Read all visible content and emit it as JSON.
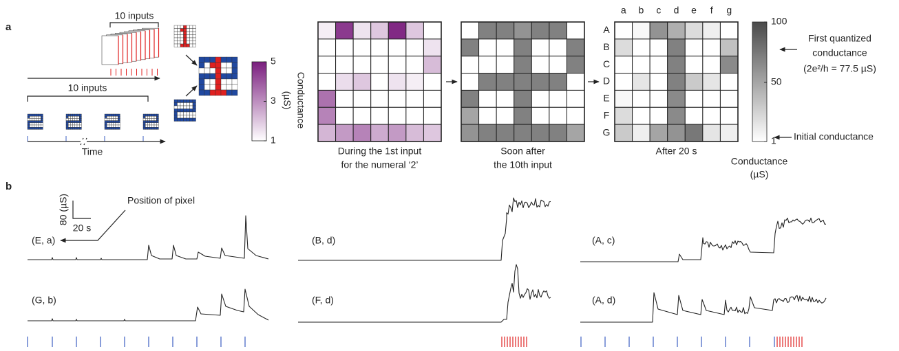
{
  "panel_a": {
    "label": "a",
    "inputs_label_top": "10 inputs",
    "inputs_label_bottom": "10 inputs",
    "time_label": "Time",
    "colorbar1": {
      "title": "Conductance",
      "unit": "(µS)",
      "lim": [
        1,
        5
      ],
      "ticks": [
        1,
        3,
        5
      ],
      "color": "#7a1e7e"
    },
    "heatmaps": [
      {
        "caption": [
          "During the 1st input",
          "for the numeral ‘2’"
        ],
        "values": [
          [
            1.3,
            4.5,
            1.5,
            2.0,
            4.8,
            2.0,
            1.0
          ],
          [
            1,
            1,
            1,
            1,
            1,
            1,
            1.5
          ],
          [
            1,
            1,
            1,
            1,
            1,
            1,
            2.2
          ],
          [
            1,
            1.6,
            2.0,
            1,
            1.5,
            1.3,
            1
          ],
          [
            3.5,
            1,
            1,
            1,
            1,
            1,
            1
          ],
          [
            3.2,
            1,
            1,
            1,
            1,
            1,
            1
          ],
          [
            2.3,
            2.8,
            3.2,
            2.5,
            2.8,
            2.2,
            2.0
          ]
        ]
      },
      {
        "caption": [
          "Soon after",
          "the 10th input"
        ],
        "values": [
          [
            1,
            70,
            70,
            60,
            70,
            70,
            1
          ],
          [
            70,
            1,
            1,
            70,
            1,
            1,
            70
          ],
          [
            1,
            1,
            1,
            70,
            1,
            1,
            70
          ],
          [
            1,
            70,
            70,
            70,
            70,
            70,
            1
          ],
          [
            70,
            1,
            1,
            70,
            1,
            1,
            1
          ],
          [
            50,
            1,
            1,
            70,
            1,
            1,
            1
          ],
          [
            60,
            70,
            70,
            70,
            70,
            70,
            50
          ]
        ]
      },
      {
        "caption": [
          "After 20 s"
        ],
        "values": [
          [
            1,
            5,
            60,
            45,
            20,
            10,
            1
          ],
          [
            20,
            1,
            1,
            70,
            1,
            1,
            35
          ],
          [
            1,
            1,
            1,
            70,
            1,
            1,
            65
          ],
          [
            1,
            15,
            1,
            70,
            30,
            15,
            1
          ],
          [
            5,
            1,
            1,
            65,
            1,
            1,
            1
          ],
          [
            20,
            1,
            1,
            65,
            1,
            1,
            1
          ],
          [
            30,
            10,
            50,
            60,
            75,
            15,
            10
          ]
        ]
      }
    ],
    "row_labels": [
      "A",
      "B",
      "C",
      "D",
      "E",
      "F",
      "G"
    ],
    "col_labels": [
      "a",
      "b",
      "c",
      "d",
      "e",
      "f",
      "g"
    ],
    "colorbar2": {
      "title": "Conductance",
      "unit": "(µS)",
      "lim": [
        1,
        100
      ],
      "ticks": [
        1,
        50,
        100
      ],
      "color": "#4a4a4a"
    },
    "annotation_first": [
      "First quantized",
      "conductance",
      "(2e²/h =  77.5 µS)"
    ],
    "annotation_initial": "Initial conductance"
  },
  "panel_b": {
    "label": "b",
    "scale_y": "80 (µS)",
    "scale_x": "20 s",
    "position_label": "Position of pixel",
    "traces": [
      "(E, a)",
      "(G, b)",
      "(B, d)",
      "(F, d)",
      "(A, c)",
      "(A, d)"
    ]
  }
}
